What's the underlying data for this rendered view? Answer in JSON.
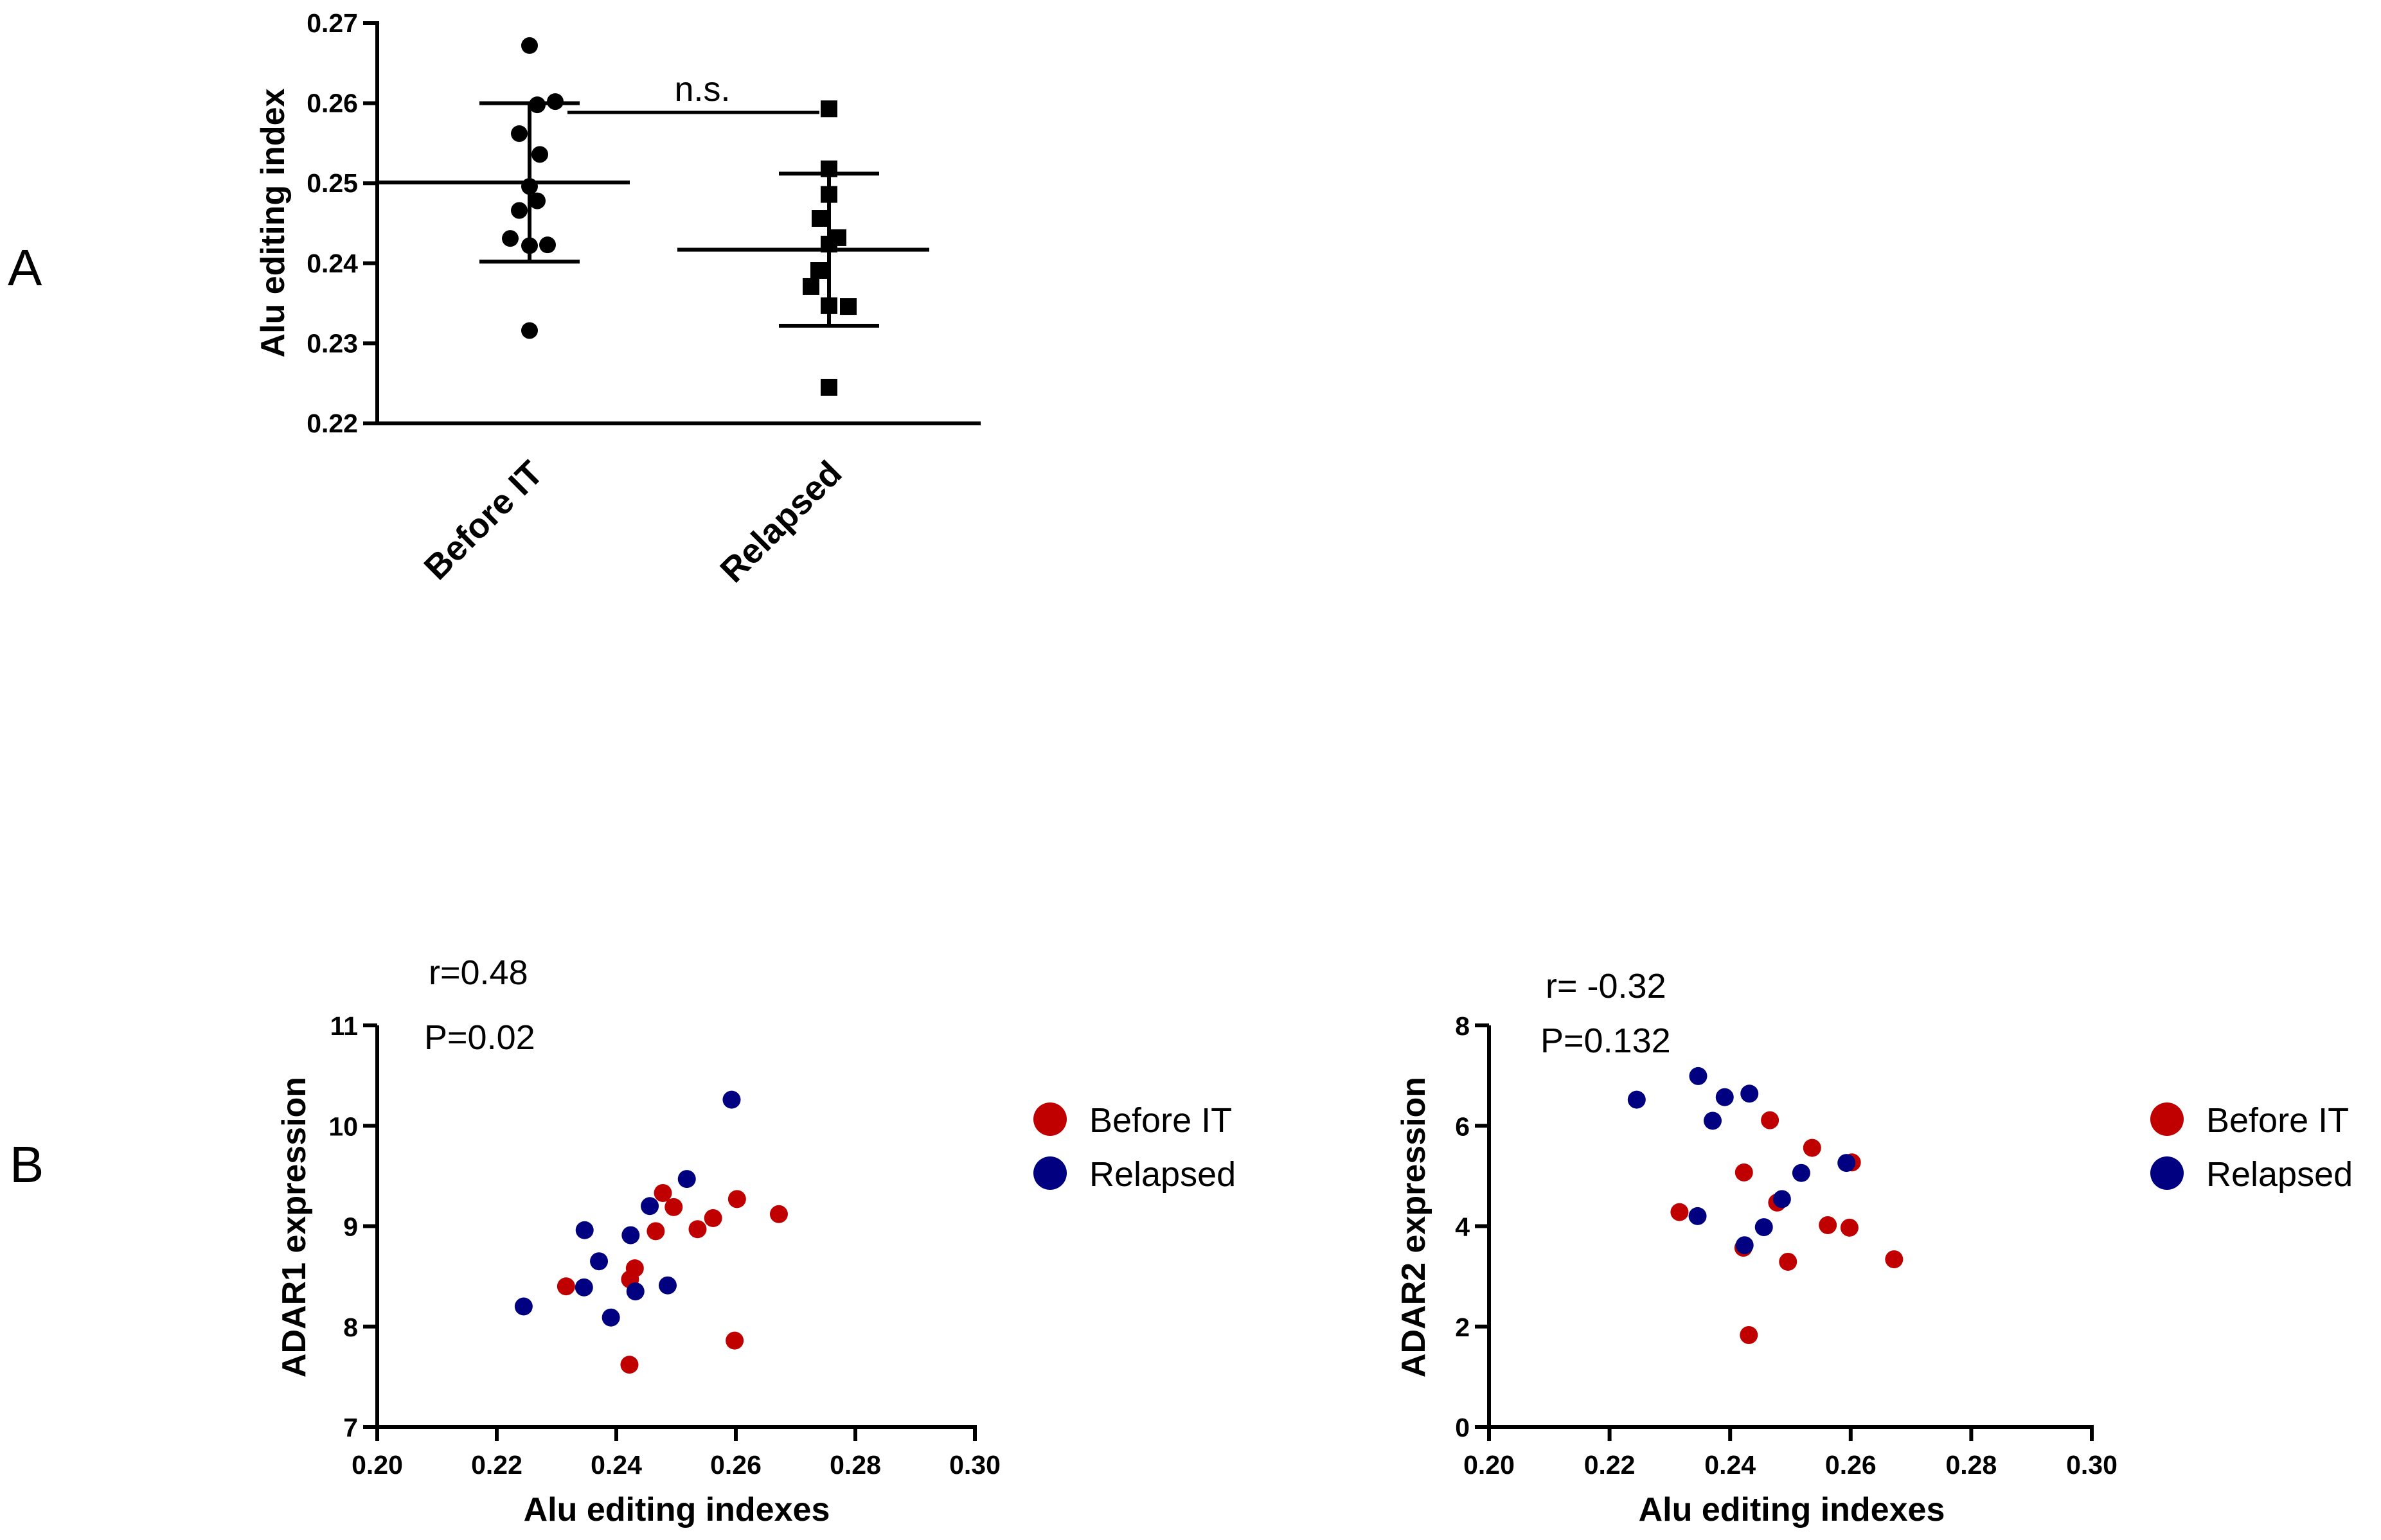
{
  "panel_labels": {
    "a": "A",
    "b": "B"
  },
  "colors": {
    "before": "#c00000",
    "relapsed": "#000080",
    "ink": "#000000"
  },
  "chart_data": [
    {
      "id": "A",
      "type": "scatter",
      "ylabel": "Alu editing index",
      "ylim": [
        0.22,
        0.27
      ],
      "yticks": [
        "0.22",
        "0.23",
        "0.24",
        "0.25",
        "0.26",
        "0.27"
      ],
      "categories": [
        "Before IT",
        "Relapsed"
      ],
      "groups": [
        {
          "name": "Before IT",
          "marker": "circle",
          "values": [
            0.2672,
            0.2602,
            0.2598,
            0.2562,
            0.2536,
            0.2496,
            0.2478,
            0.2466,
            0.2431,
            0.2423,
            0.2422,
            0.2316
          ],
          "mean": 0.2501,
          "sd_low": 0.2402,
          "sd_high": 0.26
        },
        {
          "name": "Relapsed",
          "marker": "square",
          "values": [
            0.2593,
            0.2518,
            0.2486,
            0.2456,
            0.2432,
            0.2424,
            0.2391,
            0.2371,
            0.2347,
            0.2346,
            0.2245
          ],
          "mean": 0.2417,
          "sd_low": 0.2322,
          "sd_high": 0.2512
        }
      ],
      "annotation": "n.s."
    },
    {
      "id": "B-left",
      "type": "scatter",
      "xlabel": "Alu editing indexes",
      "ylabel": "ADAR1 expression",
      "xlim": [
        0.2,
        0.3
      ],
      "ylim": [
        7,
        11
      ],
      "xticks": [
        "0.20",
        "0.22",
        "0.24",
        "0.26",
        "0.28",
        "0.30"
      ],
      "yticks": [
        "7",
        "8",
        "9",
        "10",
        "11"
      ],
      "stats": {
        "r": "r=0.48",
        "p": "P=0.02"
      },
      "series": [
        {
          "name": "Before IT",
          "x": [
            0.2316,
            0.2423,
            0.2431,
            0.2466,
            0.2478,
            0.2496,
            0.2536,
            0.2562,
            0.2598,
            0.2602,
            0.2672,
            0.2422
          ],
          "y": [
            8.4,
            8.47,
            8.58,
            8.95,
            9.33,
            9.19,
            8.97,
            9.08,
            7.86,
            9.27,
            9.12,
            7.62
          ]
        },
        {
          "name": "Relapsed",
          "x": [
            0.2245,
            0.2346,
            0.2347,
            0.2371,
            0.2391,
            0.2424,
            0.2432,
            0.2456,
            0.2486,
            0.2518,
            0.2593
          ],
          "y": [
            8.2,
            8.39,
            8.96,
            8.65,
            8.09,
            8.91,
            8.35,
            9.2,
            8.41,
            9.47,
            10.26
          ]
        }
      ]
    },
    {
      "id": "B-right",
      "type": "scatter",
      "xlabel": "Alu editing indexes",
      "ylabel": "ADAR2 expression",
      "xlim": [
        0.2,
        0.3
      ],
      "ylim": [
        0,
        8
      ],
      "xticks": [
        "0.20",
        "0.22",
        "0.24",
        "0.26",
        "0.28",
        "0.30"
      ],
      "yticks": [
        "0",
        "2",
        "4",
        "6",
        "8"
      ],
      "stats": {
        "r": "r= -0.32",
        "p": "P=0.132"
      },
      "series": [
        {
          "name": "Before IT",
          "x": [
            0.2316,
            0.2423,
            0.2431,
            0.2466,
            0.2478,
            0.2496,
            0.2536,
            0.2562,
            0.2598,
            0.2602,
            0.2672,
            0.2422
          ],
          "y": [
            4.28,
            5.07,
            1.83,
            6.11,
            4.47,
            3.29,
            5.56,
            4.02,
            3.97,
            5.27,
            3.34,
            3.57
          ]
        },
        {
          "name": "Relapsed",
          "x": [
            0.2245,
            0.2346,
            0.2347,
            0.2371,
            0.2391,
            0.2424,
            0.2432,
            0.2456,
            0.2486,
            0.2518,
            0.2593
          ],
          "y": [
            6.52,
            4.2,
            6.99,
            6.1,
            6.57,
            3.62,
            6.64,
            3.98,
            4.54,
            5.06,
            5.26
          ]
        }
      ]
    }
  ],
  "legend": {
    "before": "Before IT",
    "relapsed": "Relapsed"
  }
}
